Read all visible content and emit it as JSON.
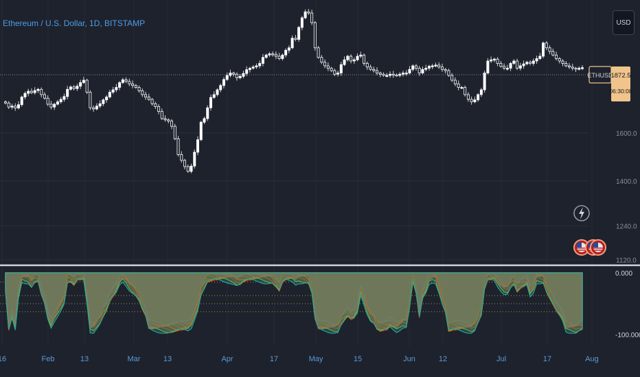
{
  "header": {
    "symbol_title": "Ethereum / U.S. Dollar, 1D, BITSTAMP"
  },
  "toolbar": {
    "currency_button": "USD"
  },
  "price_badge": {
    "ticker": "ETHUSD",
    "price": "1872.5",
    "countdown": "06:30:08"
  },
  "colors": {
    "background": "#1e222d",
    "up": "#ffffff",
    "down": "#ffffff",
    "badge": "#f0c48a",
    "title": "#4f9de6",
    "indicator_series": [
      "#2fb7c4",
      "#2a8fd6",
      "#7e57c2",
      "#2e7d32",
      "#e85d1c",
      "#c62828",
      "#9e9d24",
      "#26a69a"
    ]
  },
  "chart_data": [
    {
      "type": "candlestick",
      "title": "Ethereum / U.S. Dollar, 1D, BITSTAMP",
      "ylim": [
        1090,
        1985
      ],
      "y_ticks": [
        1600,
        1400,
        1240,
        1120
      ],
      "y_tick_labels": [
        "1600.0",
        "1400.0",
        "1240.0",
        "1120.0"
      ],
      "x_tick_labels": [
        "16",
        "Feb",
        "13",
        "Mar",
        "13",
        "Apr",
        "17",
        "May",
        "15",
        "Jun",
        "12",
        "Jul",
        "17",
        "Aug"
      ],
      "last_price": 1872.5,
      "close": [
        1725,
        1708,
        1712,
        1704,
        1718,
        1750,
        1765,
        1774,
        1768,
        1777,
        1782,
        1760,
        1745,
        1720,
        1708,
        1720,
        1730,
        1740,
        1752,
        1782,
        1792,
        1785,
        1795,
        1810,
        1820,
        1770,
        1705,
        1700,
        1712,
        1722,
        1738,
        1750,
        1770,
        1780,
        1790,
        1810,
        1822,
        1815,
        1805,
        1798,
        1790,
        1776,
        1760,
        1750,
        1740,
        1722,
        1710,
        1690,
        1660,
        1655,
        1650,
        1628,
        1576,
        1510,
        1486,
        1460,
        1440,
        1462,
        1520,
        1572,
        1645,
        1660,
        1705,
        1748,
        1760,
        1780,
        1798,
        1823,
        1840,
        1850,
        1845,
        1830,
        1836,
        1848,
        1864,
        1870,
        1875,
        1880,
        1890,
        1915,
        1925,
        1930,
        1928,
        1920,
        1910,
        1925,
        1945,
        1955,
        1995,
        1990,
        2040,
        2080,
        2105,
        2100,
        2060,
        1955,
        1915,
        1895,
        1880,
        1870,
        1860,
        1845,
        1850,
        1885,
        1905,
        1920,
        1900,
        1905,
        1920,
        1925,
        1890,
        1875,
        1865,
        1860,
        1850,
        1845,
        1840,
        1840,
        1845,
        1842,
        1840,
        1845,
        1850,
        1850,
        1865,
        1880,
        1870,
        1850,
        1865,
        1870,
        1878,
        1880,
        1883,
        1875,
        1865,
        1860,
        1840,
        1820,
        1805,
        1790,
        1790,
        1760,
        1740,
        1730,
        1738,
        1760,
        1780,
        1850,
        1900,
        1905,
        1908,
        1890,
        1878,
        1870,
        1870,
        1890,
        1900,
        1870,
        1880,
        1888,
        1895,
        1890,
        1900,
        1910,
        1920,
        1975,
        1955,
        1940,
        1925,
        1910,
        1900,
        1890,
        1880,
        1875,
        1870,
        1866,
        1870,
        1872.5
      ]
    },
    {
      "type": "area",
      "ylim": [
        -100,
        0
      ],
      "y_ticks": [
        0,
        -100
      ],
      "y_tick_labels": [
        "0.000",
        "-100.000"
      ],
      "reference_lines": [
        -15,
        -37,
        -50,
        -63
      ],
      "series_count": 8
    }
  ]
}
